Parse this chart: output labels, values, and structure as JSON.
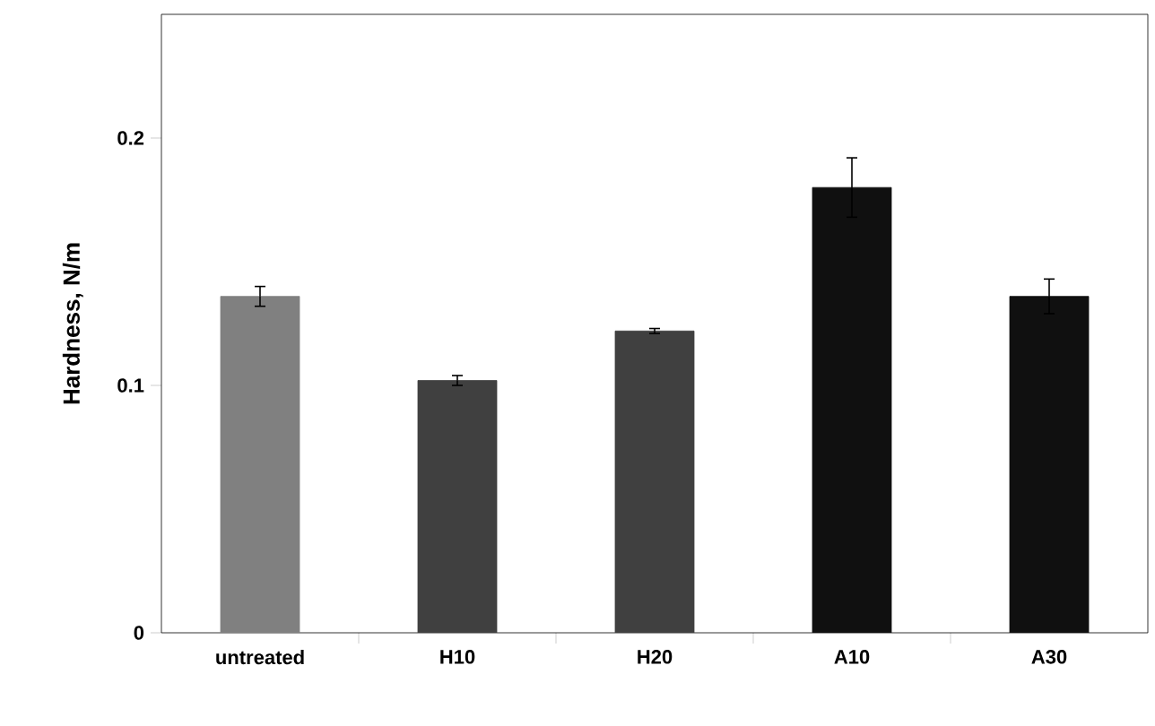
{
  "chart_data": {
    "type": "bar",
    "ylabel": "Hardness, N/m",
    "categories": [
      "untreated",
      "H10",
      "H20",
      "A10",
      "A30"
    ],
    "values": [
      0.136,
      0.102,
      0.122,
      0.18,
      0.136
    ],
    "errors": [
      0.004,
      0.002,
      0.001,
      0.012,
      0.007
    ],
    "colors": [
      "#808080",
      "#404040",
      "#404040",
      "#101010",
      "#101010"
    ],
    "ylim": [
      0,
      0.25
    ],
    "yticks": [
      0,
      0.1,
      0.2
    ],
    "grid": false
  }
}
